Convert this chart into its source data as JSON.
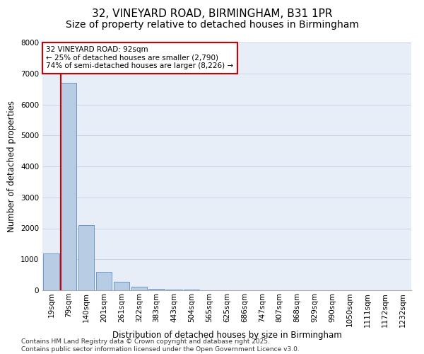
{
  "title_line1": "32, VINEYARD ROAD, BIRMINGHAM, B31 1PR",
  "title_line2": "Size of property relative to detached houses in Birmingham",
  "xlabel": "Distribution of detached houses by size in Birmingham",
  "ylabel": "Number of detached properties",
  "categories": [
    "19sqm",
    "79sqm",
    "140sqm",
    "201sqm",
    "261sqm",
    "322sqm",
    "383sqm",
    "443sqm",
    "504sqm",
    "565sqm",
    "625sqm",
    "686sqm",
    "747sqm",
    "807sqm",
    "868sqm",
    "929sqm",
    "990sqm",
    "1050sqm",
    "1111sqm",
    "1172sqm",
    "1232sqm"
  ],
  "values": [
    1200,
    6700,
    2100,
    600,
    270,
    110,
    55,
    30,
    15,
    5,
    0,
    0,
    0,
    0,
    0,
    0,
    0,
    0,
    0,
    0,
    0
  ],
  "bar_color": "#b8cce4",
  "bar_edge_color": "#5b8dc8",
  "vline_color": "#cc0000",
  "vline_x_index": 1,
  "annotation_text": "32 VINEYARD ROAD: 92sqm\n← 25% of detached houses are smaller (2,790)\n74% of semi-detached houses are larger (8,226) →",
  "annotation_box_color": "#cc0000",
  "ylim": [
    0,
    8000
  ],
  "yticks": [
    0,
    1000,
    2000,
    3000,
    4000,
    5000,
    6000,
    7000,
    8000
  ],
  "grid_color": "#c8d4e8",
  "background_color": "#e8eef8",
  "footnote": "Contains HM Land Registry data © Crown copyright and database right 2025.\nContains public sector information licensed under the Open Government Licence v3.0.",
  "title_fontsize": 11,
  "subtitle_fontsize": 10,
  "axis_label_fontsize": 8.5,
  "tick_fontsize": 7.5,
  "footnote_fontsize": 6.5,
  "annotation_fontsize": 7.5
}
